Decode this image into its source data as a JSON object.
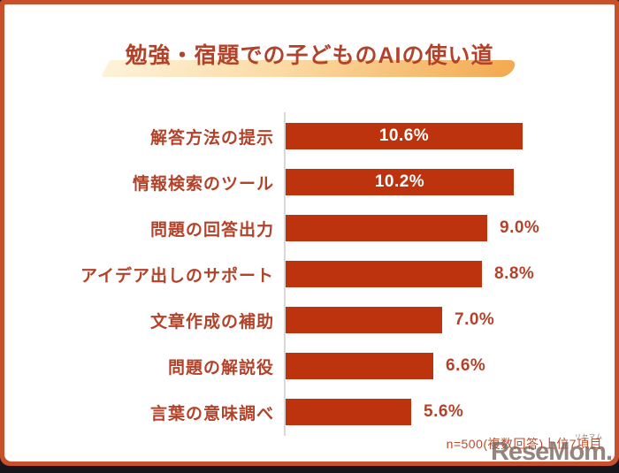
{
  "page": {
    "title": "勉強・宿題での子どものAIの使い道",
    "footnote": "n=500(複数回答)上位7項目",
    "watermark": {
      "text": "ReseMom.",
      "furigana": "リセマム"
    }
  },
  "chart_data": {
    "type": "bar",
    "orientation": "horizontal",
    "title": "勉強・宿題での子どものAIの使い道",
    "categories": [
      "解答方法の提示",
      "情報検索のツール",
      "問題の回答出力",
      "アイデア出しのサポート",
      "文章作成の補助",
      "問題の解説役",
      "言葉の意味調べ"
    ],
    "values": [
      10.6,
      10.2,
      9.0,
      8.8,
      7.0,
      6.6,
      5.6
    ],
    "value_labels": [
      "10.6%",
      "10.2%",
      "9.0%",
      "8.8%",
      "7.0%",
      "6.6%",
      "5.6%"
    ],
    "label_positions": [
      "inside",
      "inside",
      "outside",
      "outside",
      "outside",
      "outside",
      "outside"
    ],
    "xlim": [
      0,
      10.6
    ],
    "grid": false,
    "legend": "none",
    "note": "n=500(複数回答)上位7項目",
    "colors": {
      "bar": "#bc330e",
      "category_text": "#b2432a",
      "value_inside": "#ffffff",
      "value_outside": "#b2432a",
      "axis_line": "#d9d9d9",
      "frame_border": "#c8512c",
      "bottom_bar": "#15151b",
      "title_text": "#b2432a",
      "highlight_start": "#fdf3da",
      "highlight_end": "#f3a94f"
    }
  }
}
